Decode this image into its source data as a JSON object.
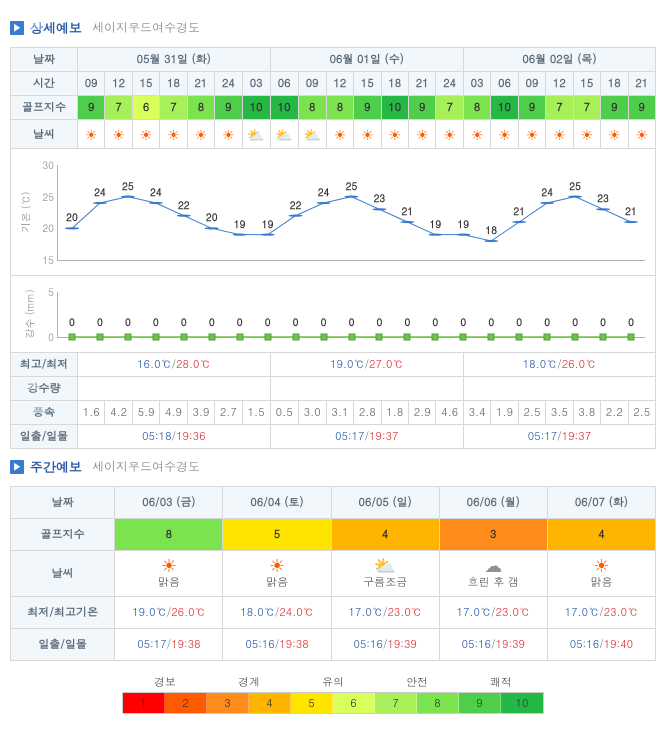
{
  "detail": {
    "header_title": "상세예보",
    "header_sub": "세이지우드여수경도",
    "row_labels": {
      "date": "날짜",
      "time": "시간",
      "golf": "골프지수",
      "weather": "날씨",
      "temp_axis": "기온 (℃)",
      "precip_axis": "강수 (mm)",
      "hilo": "최고/최저",
      "rain_amt": "강수량",
      "wind": "풍속",
      "sun": "일출/일몰"
    },
    "days": [
      {
        "label": "05월 31일 (화)",
        "hilo_low": "16.0℃",
        "hilo_high": "28.0℃",
        "rain": "",
        "sunrise": "05:18",
        "sunset": "19:36"
      },
      {
        "label": "06월 01일 (수)",
        "hilo_low": "19.0℃",
        "hilo_high": "27.0℃",
        "rain": "",
        "sunrise": "05:17",
        "sunset": "19:37"
      },
      {
        "label": "06월 02일 (목)",
        "hilo_low": "18.0℃",
        "hilo_high": "26.0℃",
        "rain": "",
        "sunrise": "05:17",
        "sunset": "19:37"
      }
    ],
    "times": [
      "09",
      "12",
      "15",
      "18",
      "21",
      "24",
      "03",
      "06",
      "09",
      "12",
      "15",
      "18",
      "21",
      "24",
      "03",
      "06",
      "09",
      "12",
      "15",
      "18",
      "21"
    ],
    "golf": [
      9,
      7,
      6,
      7,
      8,
      9,
      10,
      10,
      8,
      8,
      9,
      10,
      9,
      7,
      8,
      10,
      9,
      7,
      7,
      9,
      9
    ],
    "weather_codes": [
      "sun",
      "sun",
      "sun",
      "sun",
      "sun",
      "sun",
      "pcloud",
      "pcloud",
      "pcloud",
      "sun",
      "sun",
      "sun",
      "sun",
      "sun",
      "sun",
      "sun",
      "sun",
      "sun",
      "sun",
      "sun",
      "sun"
    ],
    "temps": [
      20,
      24,
      25,
      24,
      22,
      20,
      19,
      19,
      22,
      24,
      25,
      23,
      21,
      19,
      19,
      18,
      21,
      24,
      25,
      23,
      21
    ],
    "precip": [
      0,
      0,
      0,
      0,
      0,
      0,
      0,
      0,
      0,
      0,
      0,
      0,
      0,
      0,
      0,
      0,
      0,
      0,
      0,
      0,
      0
    ],
    "wind": [
      "1.6",
      "4.2",
      "5.9",
      "4.9",
      "3.9",
      "2.7",
      "1.5",
      "0.5",
      "3.0",
      "3.1",
      "2.8",
      "1.8",
      "2.9",
      "4.6",
      "3.4",
      "1.9",
      "2.5",
      "3.5",
      "3.8",
      "2.2",
      "2.5"
    ],
    "temp_chart": {
      "ylim": [
        15,
        30
      ],
      "yticks": [
        15,
        20,
        25,
        30
      ],
      "line_color": "#3b7bce",
      "marker_color": "#3b7bce"
    },
    "precip_chart": {
      "ylim": [
        0,
        5
      ],
      "yticks": [
        0,
        5
      ],
      "line_color": "#6fc24a"
    }
  },
  "weekly": {
    "header_title": "주간예보",
    "header_sub": "세이지우드여수경도",
    "row_labels": {
      "date": "날짜",
      "golf": "골프지수",
      "weather": "날씨",
      "temps": "최저/최고기온",
      "sun": "일출/일몰"
    },
    "days": [
      {
        "date": "06/03 (금)",
        "golf": 8,
        "wicon": "sun",
        "wlabel": "맑음",
        "low": "19.0℃",
        "high": "26.0℃",
        "sunrise": "05:17",
        "sunset": "19:38"
      },
      {
        "date": "06/04 (토)",
        "golf": 5,
        "wicon": "sun",
        "wlabel": "맑음",
        "low": "18.0℃",
        "high": "24.0℃",
        "sunrise": "05:16",
        "sunset": "19:38"
      },
      {
        "date": "06/05 (일)",
        "golf": 4,
        "wicon": "pcloud",
        "wlabel": "구름조금",
        "low": "17.0℃",
        "high": "23.0℃",
        "sunrise": "05:16",
        "sunset": "19:39"
      },
      {
        "date": "06/06 (월)",
        "golf": 3,
        "wicon": "cloudy",
        "wlabel": "흐린 후 갬",
        "low": "17.0℃",
        "high": "23.0℃",
        "sunrise": "05:16",
        "sunset": "19:39"
      },
      {
        "date": "06/07 (화)",
        "golf": 4,
        "wicon": "sun",
        "wlabel": "맑음",
        "low": "17.0℃",
        "high": "23.0℃",
        "sunrise": "05:16",
        "sunset": "19:40"
      }
    ]
  },
  "legend": {
    "labels": [
      "경보",
      "경계",
      "유의",
      "안전",
      "쾌적"
    ],
    "cells": [
      {
        "n": 1,
        "color": "#ff0000"
      },
      {
        "n": 2,
        "color": "#ff5a00"
      },
      {
        "n": 3,
        "color": "#ff8c1a"
      },
      {
        "n": 4,
        "color": "#ffb400"
      },
      {
        "n": 5,
        "color": "#ffe400"
      },
      {
        "n": 6,
        "color": "#d8ff5a"
      },
      {
        "n": 7,
        "color": "#a8f05a"
      },
      {
        "n": 8,
        "color": "#7be34e"
      },
      {
        "n": 9,
        "color": "#4ece4a"
      },
      {
        "n": 10,
        "color": "#25b845"
      }
    ]
  },
  "golf_colors": {
    "1": "#ff0000",
    "2": "#ff5a00",
    "3": "#ff8c1a",
    "4": "#ffb400",
    "5": "#ffe400",
    "6": "#d8ff5a",
    "7": "#a8f05a",
    "8": "#7be34e",
    "9": "#4ece4a",
    "10": "#25b845"
  },
  "weather_glyphs": {
    "sun": {
      "glyph": "☀",
      "color": "#ff5a00"
    },
    "pcloud": {
      "glyph": "⛅",
      "color": "#b0a060"
    },
    "cloudy": {
      "glyph": "☁",
      "color": "#909090"
    }
  }
}
